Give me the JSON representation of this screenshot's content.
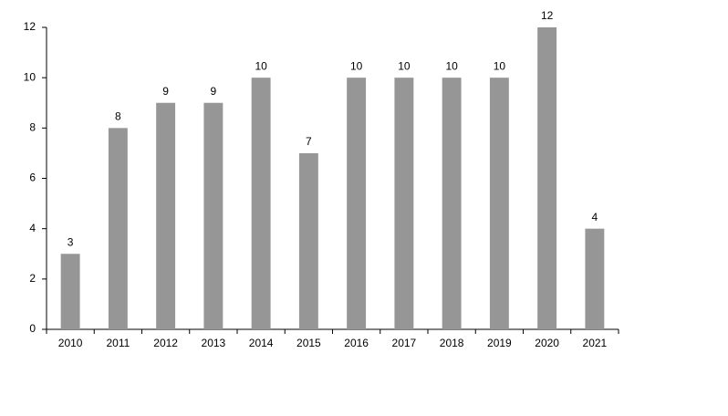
{
  "chart_data": {
    "type": "bar",
    "categories": [
      "2010",
      "2011",
      "2012",
      "2013",
      "2014",
      "2015",
      "2016",
      "2017",
      "2018",
      "2019",
      "2020",
      "2021"
    ],
    "values": [
      3,
      8,
      9,
      9,
      10,
      7,
      10,
      10,
      10,
      10,
      12,
      4
    ],
    "color": "#969696",
    "ylim": [
      0,
      12
    ],
    "yticks": [
      0,
      2,
      4,
      6,
      8,
      10,
      12
    ],
    "grid": false,
    "data_labels": true
  }
}
